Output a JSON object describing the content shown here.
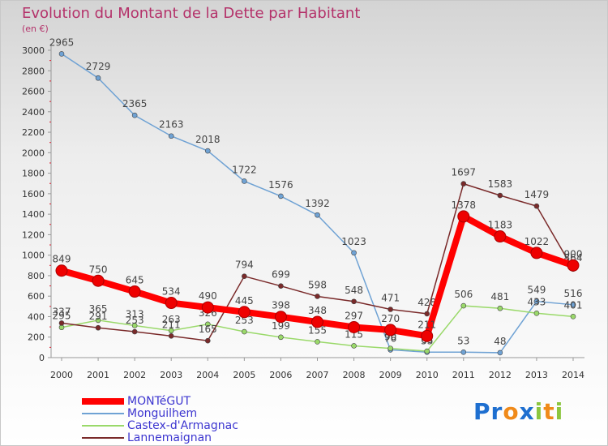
{
  "title": "Evolution du Montant de la Dette par Habitant",
  "unit_label": "(en €)",
  "logo": {
    "letters": [
      {
        "ch": "P",
        "color": "#1e6fd0"
      },
      {
        "ch": "r",
        "color": "#1e6fd0"
      },
      {
        "ch": "o",
        "color": "#f08a1a"
      },
      {
        "ch": "x",
        "color": "#1e6fd0"
      },
      {
        "ch": "i",
        "color": "#8cc63f"
      },
      {
        "ch": "t",
        "color": "#f08a1a"
      },
      {
        "ch": "i",
        "color": "#8cc63f"
      }
    ]
  },
  "chart_data": {
    "type": "line",
    "title": "Evolution du Montant de la Dette par Habitant",
    "ylabel": "(en €)",
    "xlabel": "",
    "x": [
      2000,
      2001,
      2002,
      2003,
      2004,
      2005,
      2006,
      2007,
      2008,
      2009,
      2010,
      2011,
      2012,
      2013,
      2014
    ],
    "ylim": [
      0,
      3000
    ],
    "yticks": [
      0,
      200,
      400,
      600,
      800,
      1000,
      1200,
      1400,
      1600,
      1800,
      2000,
      2200,
      2400,
      2600,
      2800,
      3000
    ],
    "grid": false,
    "legend_position": "bottom-left",
    "series": [
      {
        "name": "MONTéGUT",
        "color": "#ff0000",
        "highlight": true,
        "values": [
          849,
          750,
          645,
          534,
          490,
          445,
          398,
          348,
          297,
          270,
          211,
          1378,
          1183,
          1022,
          900
        ]
      },
      {
        "name": "Monguilhem",
        "color": "#6fa2d4",
        "values": [
          2965,
          2729,
          2365,
          2163,
          2018,
          1722,
          1576,
          1392,
          1023,
          76,
          53,
          53,
          48,
          549,
          516
        ]
      },
      {
        "name": "Castex-d'Armagnac",
        "color": "#9ad96a",
        "values": [
          295,
          365,
          313,
          263,
          326,
          253,
          199,
          155,
          115,
          90,
          63,
          506,
          481,
          433,
          401
        ]
      },
      {
        "name": "Lannemaignan",
        "color": "#7a2a2a",
        "values": [
          337,
          291,
          253,
          211,
          165,
          794,
          699,
          598,
          548,
          471,
          428,
          1697,
          1583,
          1479,
          864
        ]
      }
    ]
  }
}
